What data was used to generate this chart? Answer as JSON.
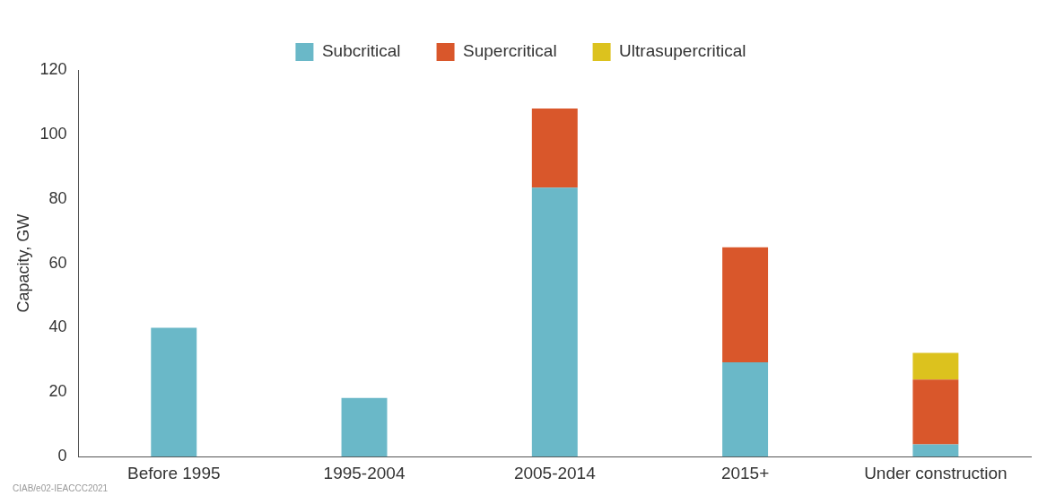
{
  "chart_data": {
    "type": "bar",
    "ylabel": "Capacity, GW",
    "categories": [
      "Before 1995",
      "1995-2004",
      "2005-2014",
      "2015+",
      "Under construction"
    ],
    "stacked": true,
    "series": [
      {
        "name": "Subcritical",
        "color": "#6ab8c8",
        "values": [
          40,
          18.2,
          83.5,
          29.3,
          3.8
        ]
      },
      {
        "name": "Supercritical",
        "color": "#d9572b",
        "values": [
          0,
          0,
          24.5,
          35.7,
          20.1
        ]
      },
      {
        "name": "Ultrasupercritical",
        "color": "#dcc21e",
        "values": [
          0,
          0,
          0,
          0,
          8.3
        ]
      }
    ],
    "ylim": [
      0,
      120
    ],
    "yticks": [
      0,
      20,
      40,
      60,
      80,
      100,
      120
    ],
    "grid": false,
    "legend": "top",
    "annotations": [
      "CIAB/e02-IEACCC2021"
    ]
  }
}
